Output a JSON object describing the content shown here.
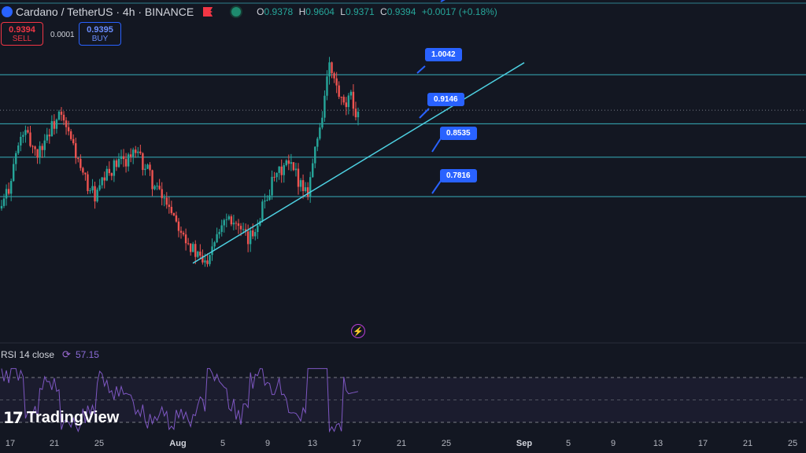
{
  "header": {
    "title": "Cardano / TetherUS · 4h · BINANCE",
    "ohlc": {
      "o_label": "O",
      "o": "0.9378",
      "h_label": "H",
      "h": "0.9604",
      "l_label": "L",
      "l": "0.9371",
      "c_label": "C",
      "c": "0.9394",
      "change": "+0.0017 (+0.18%)"
    }
  },
  "trade": {
    "sell_price": "0.9394",
    "sell_label": "SELL",
    "spread": "0.0001",
    "buy_price": "0.9395",
    "buy_label": "BUY"
  },
  "rsi": {
    "label": "RSI 14 close",
    "value": "57.15"
  },
  "brand": {
    "name": "TradingView"
  },
  "colors": {
    "background": "#131722",
    "up": "#26a69a",
    "down": "#ef5350",
    "level_line": "#3ec9d6",
    "trendline": "#4dd0e1",
    "label_bg": "#2962ff",
    "rsi_line": "#7e57c2"
  },
  "chart_data": {
    "type": "candlestick",
    "symbol": "ADA/USDT",
    "timeframe": "4h",
    "x_ticks": [
      "17",
      "21",
      "25",
      "Aug",
      "5",
      "9",
      "13",
      "17",
      "21",
      "25",
      "Sep",
      "5",
      "9",
      "13",
      "17",
      "21",
      "25"
    ],
    "horizontal_levels": [
      1.0042,
      0.9146,
      0.8535,
      0.7816
    ],
    "level_labels": [
      "1.0042",
      "0.9146",
      "0.8535",
      "0.7816"
    ],
    "trendline": {
      "from": {
        "date": "Aug 2",
        "price": 0.66
      },
      "to": {
        "date": "Aug 24",
        "price": 0.94
      }
    },
    "candles_approx": {
      "close_path": [
        0.76,
        0.8,
        0.86,
        0.9,
        0.88,
        0.86,
        0.89,
        0.91,
        0.93,
        0.9,
        0.87,
        0.82,
        0.8,
        0.78,
        0.81,
        0.83,
        0.84,
        0.85,
        0.86,
        0.85,
        0.83,
        0.8,
        0.78,
        0.77,
        0.74,
        0.72,
        0.69,
        0.67,
        0.66,
        0.7,
        0.73,
        0.75,
        0.74,
        0.71,
        0.7,
        0.73,
        0.77,
        0.8,
        0.82,
        0.84,
        0.83,
        0.81,
        0.79,
        0.86,
        0.93,
        1.02,
        0.98,
        0.94,
        0.96,
        0.93
      ],
      "last_close": 0.9394
    },
    "rsi": {
      "length": 14,
      "last": 57.15,
      "upper_band": 70,
      "lower_band": 30
    }
  }
}
